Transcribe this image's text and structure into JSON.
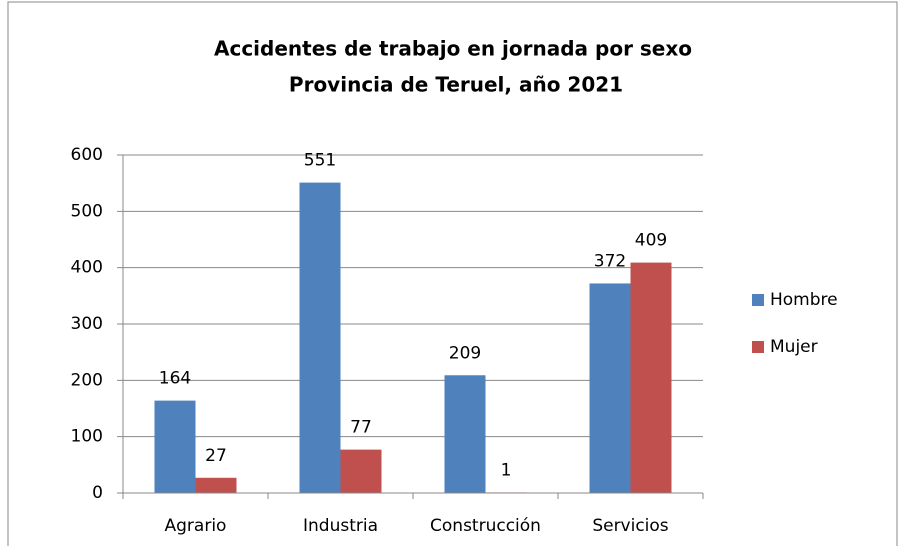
{
  "chart_data": {
    "type": "bar",
    "title": "Accidentes de trabajo en jornada por sexo",
    "subtitle": "Provincia de Teruel, año 2021",
    "categories": [
      "Agrario",
      "Industria",
      "Construcción",
      "Servicios"
    ],
    "series": [
      {
        "name": "Hombre",
        "color": "#4f81bd",
        "values": [
          164,
          551,
          209,
          372
        ]
      },
      {
        "name": "Mujer",
        "color": "#c0504d",
        "values": [
          27,
          77,
          1,
          409
        ]
      }
    ],
    "ylim": [
      0,
      600
    ],
    "yticks": [
      0,
      100,
      200,
      300,
      400,
      500,
      600
    ],
    "grid": true,
    "legend": "right"
  }
}
